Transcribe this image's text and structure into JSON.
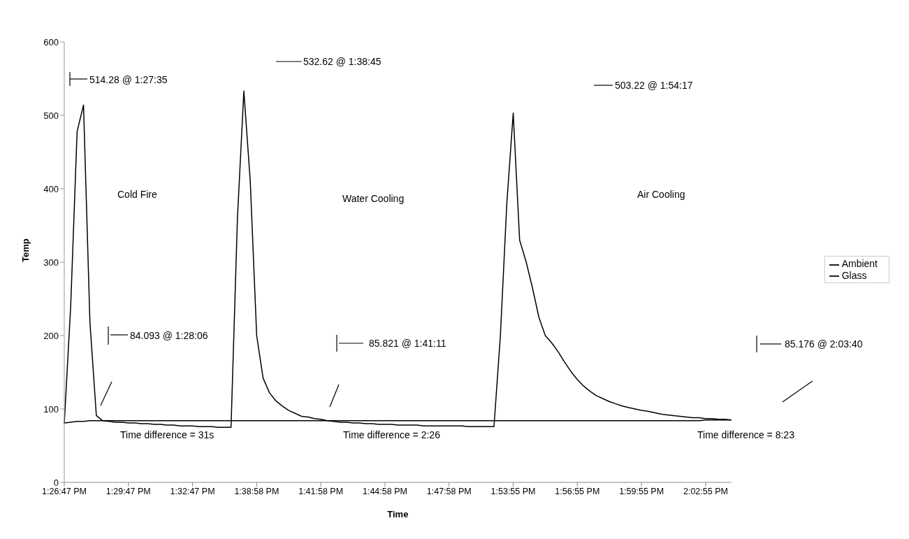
{
  "chart_data": {
    "type": "line",
    "xlabel": "Time",
    "ylabel": "Temp",
    "categories": [
      "1:26:47 PM",
      null,
      null,
      null,
      null,
      null,
      null,
      null,
      null,
      null,
      "1:29:47 PM",
      null,
      null,
      null,
      null,
      null,
      null,
      null,
      null,
      null,
      "1:32:47 PM",
      null,
      null,
      null,
      null,
      null,
      null,
      null,
      null,
      null,
      "1:38:58 PM",
      null,
      null,
      null,
      null,
      null,
      null,
      null,
      null,
      null,
      "1:41:58 PM",
      null,
      null,
      null,
      null,
      null,
      null,
      null,
      null,
      null,
      "1:44:58 PM",
      null,
      null,
      null,
      null,
      null,
      null,
      null,
      null,
      null,
      "1:47:58 PM",
      null,
      null,
      null,
      null,
      null,
      null,
      null,
      null,
      null,
      "1:53:55 PM",
      null,
      null,
      null,
      null,
      null,
      null,
      null,
      null,
      null,
      "1:56:55 PM",
      null,
      null,
      null,
      null,
      null,
      null,
      null,
      null,
      null,
      "1:59:55 PM",
      null,
      null,
      null,
      null,
      null,
      null,
      null,
      null,
      null,
      "2:02:55 PM",
      null,
      null,
      null,
      null
    ],
    "series": [
      {
        "name": "Ambient",
        "color": "#000000",
        "values": [
          81,
          82,
          83,
          83,
          84,
          84,
          84,
          84,
          84,
          84,
          84,
          84,
          84,
          84,
          84,
          84,
          84,
          84,
          84,
          84,
          84,
          84,
          84,
          84,
          84,
          84,
          84,
          84,
          84,
          84,
          84,
          84,
          84,
          84,
          84,
          84,
          84,
          84,
          84,
          84,
          84,
          84,
          84,
          84,
          84,
          84,
          84,
          84,
          84,
          84,
          84,
          84,
          84,
          84,
          84,
          84,
          84,
          84,
          84,
          84,
          84,
          84,
          84,
          84,
          84,
          84,
          84,
          84,
          84,
          84,
          84,
          84,
          84,
          84,
          84,
          84,
          84,
          84,
          84,
          84,
          84,
          84,
          84,
          84,
          84,
          84,
          84,
          84,
          84,
          84,
          84,
          84,
          84,
          84,
          84,
          84,
          84,
          84,
          84,
          84,
          85,
          85,
          85,
          85,
          85
        ]
      },
      {
        "name": "Glass",
        "color": "#000000",
        "values": [
          80,
          240,
          478,
          514,
          218,
          91,
          84,
          83,
          82,
          82,
          81,
          81,
          80,
          80,
          79,
          79,
          78,
          78,
          77,
          77,
          77,
          76,
          76,
          76,
          75,
          75,
          75,
          360,
          533,
          410,
          200,
          142,
          122,
          111,
          104,
          98,
          94,
          90,
          89,
          87,
          86,
          84,
          83,
          82,
          82,
          81,
          81,
          80,
          80,
          79,
          79,
          79,
          78,
          78,
          78,
          78,
          77,
          77,
          77,
          77,
          77,
          77,
          77,
          76,
          76,
          76,
          76,
          76,
          200,
          380,
          503,
          330,
          301,
          265,
          225,
          200,
          190,
          178,
          164,
          151,
          140,
          131,
          124,
          118,
          114,
          110,
          107,
          104,
          102,
          100,
          98,
          97,
          95,
          93,
          92,
          91,
          90,
          89,
          88,
          88,
          87,
          87,
          86,
          86,
          85
        ]
      }
    ],
    "ylim": [
      0,
      600
    ],
    "yticks": [
      0,
      100,
      200,
      300,
      400,
      500,
      600
    ],
    "grid": false,
    "legend": "right",
    "annotations": [
      "514.28 @ 1:27:35",
      "84.093 @ 1:28:06",
      "532.62 @ 1:38:45",
      "85.821 @ 1:41:11",
      "503.22 @ 1:54:17",
      "85.176 @ 2:03:40",
      "Cold Fire",
      "Water Cooling",
      "Air Cooling",
      "Time difference = 31s",
      "Time difference = 2:26",
      "Time difference = 8:23"
    ]
  }
}
